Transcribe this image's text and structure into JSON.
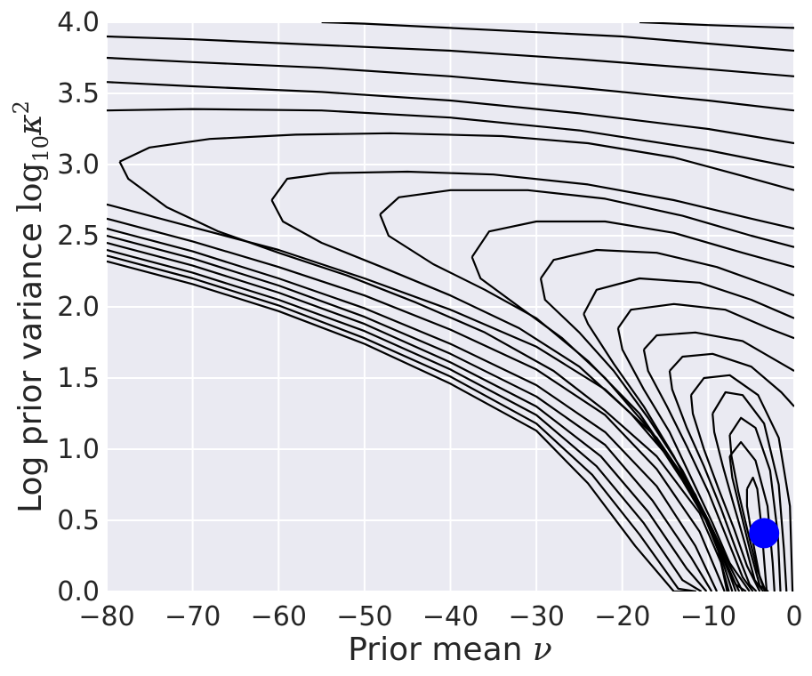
{
  "chart_data": {
    "type": "contour",
    "title": "",
    "xlabel": "Prior mean ",
    "xlabel_symbol": "ν",
    "ylabel": "Log prior variance ",
    "ylabel_log": "log",
    "ylabel_sub": "10",
    "ylabel_var": "κ",
    "ylabel_sup": "2",
    "xlim": [
      -80,
      0
    ],
    "ylim": [
      0.0,
      4.0
    ],
    "x_ticks": [
      -80,
      -70,
      -60,
      -50,
      -40,
      -30,
      -20,
      -10,
      0
    ],
    "x_tick_labels": [
      "−80",
      "−70",
      "−60",
      "−50",
      "−40",
      "−30",
      "−20",
      "−10",
      "0"
    ],
    "y_ticks": [
      0.0,
      0.5,
      1.0,
      1.5,
      2.0,
      2.5,
      3.0,
      3.5,
      4.0
    ],
    "y_tick_labels": [
      "0.0",
      "0.5",
      "1.0",
      "1.5",
      "2.0",
      "2.5",
      "3.0",
      "3.5",
      "4.0"
    ],
    "grid": true,
    "background_color": "#eaeaf2",
    "grid_color": "#ffffff",
    "contour_color": "#000000",
    "marker": {
      "x": -3.5,
      "y": 0.41,
      "color": "#0000ff"
    },
    "contours": [
      [
        [
          -78.5,
          3.02
        ],
        [
          -77.5,
          2.9
        ],
        [
          -73,
          2.7
        ],
        [
          -67,
          2.53
        ],
        [
          -60,
          2.38
        ],
        [
          -52,
          2.22
        ],
        [
          -44,
          2.03
        ],
        [
          -36,
          1.82
        ],
        [
          -28,
          1.55
        ],
        [
          -22,
          1.27
        ],
        [
          -16,
          0.95
        ],
        [
          -11,
          0.55
        ],
        [
          -8.5,
          0.2
        ],
        [
          -7.6,
          0
        ]
      ],
      [
        [
          -78.5,
          3.02
        ],
        [
          -75,
          3.12
        ],
        [
          -68,
          3.18
        ],
        [
          -58,
          3.21
        ],
        [
          -47,
          3.22
        ],
        [
          -34,
          3.2
        ],
        [
          -24,
          3.15
        ],
        [
          -14,
          3.05
        ],
        [
          -6,
          2.92
        ],
        [
          0,
          2.82
        ]
      ],
      [
        [
          -60.8,
          2.75
        ],
        [
          -59.5,
          2.6
        ],
        [
          -55,
          2.45
        ],
        [
          -48,
          2.28
        ],
        [
          -40,
          2.08
        ],
        [
          -32,
          1.85
        ],
        [
          -25,
          1.58
        ],
        [
          -19,
          1.25
        ],
        [
          -14,
          0.9
        ],
        [
          -10,
          0.5
        ],
        [
          -8,
          0.15
        ],
        [
          -7.2,
          0
        ]
      ],
      [
        [
          -60.8,
          2.75
        ],
        [
          -59,
          2.9
        ],
        [
          -54,
          2.94
        ],
        [
          -45,
          2.95
        ],
        [
          -35,
          2.93
        ],
        [
          -24,
          2.86
        ],
        [
          -14,
          2.75
        ],
        [
          -5,
          2.62
        ],
        [
          0,
          2.55
        ]
      ],
      [
        [
          -48.2,
          2.65
        ],
        [
          -47.2,
          2.5
        ],
        [
          -42,
          2.3
        ],
        [
          -36,
          2.12
        ],
        [
          -30,
          1.92
        ],
        [
          -24,
          1.62
        ],
        [
          -18,
          1.25
        ],
        [
          -13.5,
          0.85
        ],
        [
          -10,
          0.48
        ],
        [
          -7.5,
          0.12
        ],
        [
          -6.8,
          0
        ]
      ],
      [
        [
          -48.2,
          2.65
        ],
        [
          -46,
          2.77
        ],
        [
          -40,
          2.82
        ],
        [
          -31,
          2.82
        ],
        [
          -22,
          2.76
        ],
        [
          -13,
          2.64
        ],
        [
          -5,
          2.5
        ],
        [
          0,
          2.42
        ]
      ],
      [
        [
          -37.5,
          2.35
        ],
        [
          -36.5,
          2.2
        ],
        [
          -32,
          2.0
        ],
        [
          -27,
          1.78
        ],
        [
          -22,
          1.5
        ],
        [
          -17,
          1.15
        ],
        [
          -13,
          0.78
        ],
        [
          -9.5,
          0.42
        ],
        [
          -7.2,
          0.1
        ],
        [
          -6.4,
          0
        ]
      ],
      [
        [
          -37.5,
          2.35
        ],
        [
          -35.5,
          2.53
        ],
        [
          -30,
          2.6
        ],
        [
          -22,
          2.6
        ],
        [
          -14,
          2.52
        ],
        [
          -6,
          2.38
        ],
        [
          0,
          2.28
        ]
      ],
      [
        [
          -29.5,
          2.2
        ],
        [
          -29,
          2.05
        ],
        [
          -25,
          1.82
        ],
        [
          -21,
          1.55
        ],
        [
          -17,
          1.22
        ],
        [
          -13,
          0.85
        ],
        [
          -10,
          0.5
        ],
        [
          -7.5,
          0.18
        ],
        [
          -6,
          0
        ]
      ],
      [
        [
          -29.5,
          2.2
        ],
        [
          -28,
          2.33
        ],
        [
          -23,
          2.4
        ],
        [
          -16,
          2.38
        ],
        [
          -9,
          2.28
        ],
        [
          -3,
          2.15
        ],
        [
          0,
          2.08
        ]
      ],
      [
        [
          -24.5,
          1.95
        ],
        [
          -24,
          1.88
        ],
        [
          -21,
          1.6
        ],
        [
          -17.5,
          1.3
        ],
        [
          -14,
          0.95
        ],
        [
          -11,
          0.6
        ],
        [
          -8.5,
          0.28
        ],
        [
          -6.8,
          0.05
        ],
        [
          -5.6,
          0
        ]
      ],
      [
        [
          -24.5,
          1.95
        ],
        [
          -23,
          2.12
        ],
        [
          -18,
          2.2
        ],
        [
          -11,
          2.17
        ],
        [
          -5,
          2.05
        ],
        [
          0,
          1.92
        ]
      ],
      [
        [
          -20.5,
          1.85
        ],
        [
          -20,
          1.7
        ],
        [
          -17.5,
          1.42
        ],
        [
          -14.5,
          1.12
        ],
        [
          -12,
          0.8
        ],
        [
          -9.5,
          0.48
        ],
        [
          -7.5,
          0.2
        ],
        [
          -5.2,
          0
        ]
      ],
      [
        [
          -20.5,
          1.85
        ],
        [
          -19,
          1.98
        ],
        [
          -14,
          2.02
        ],
        [
          -8,
          1.98
        ],
        [
          -3,
          1.85
        ],
        [
          0,
          1.78
        ]
      ],
      [
        [
          -17.5,
          1.7
        ],
        [
          -17,
          1.55
        ],
        [
          -14.8,
          1.3
        ],
        [
          -12.5,
          1.02
        ],
        [
          -10,
          0.7
        ],
        [
          -8,
          0.4
        ],
        [
          -6,
          0.1
        ],
        [
          -4.8,
          0
        ]
      ],
      [
        [
          -17.5,
          1.7
        ],
        [
          -16,
          1.8
        ],
        [
          -11.5,
          1.82
        ],
        [
          -6,
          1.76
        ],
        [
          -2,
          1.62
        ],
        [
          0,
          1.55
        ]
      ],
      [
        [
          -14.5,
          1.55
        ],
        [
          -14.2,
          1.42
        ],
        [
          -12.5,
          1.15
        ],
        [
          -10.5,
          0.88
        ],
        [
          -8.5,
          0.58
        ],
        [
          -6.8,
          0.3
        ],
        [
          -5.2,
          0.05
        ],
        [
          -4.4,
          0
        ]
      ],
      [
        [
          -14.5,
          1.55
        ],
        [
          -13,
          1.65
        ],
        [
          -9.5,
          1.67
        ],
        [
          -5,
          1.58
        ],
        [
          -1.5,
          1.4
        ],
        [
          0,
          1.3
        ]
      ],
      [
        [
          -12,
          1.38
        ],
        [
          -11.8,
          1.25
        ],
        [
          -10.5,
          1.0
        ],
        [
          -8.8,
          0.72
        ],
        [
          -7,
          0.44
        ],
        [
          -5.5,
          0.18
        ],
        [
          -4,
          0
        ]
      ],
      [
        [
          -12,
          1.38
        ],
        [
          -10.5,
          1.5
        ],
        [
          -7.5,
          1.52
        ],
        [
          -4.2,
          1.38
        ],
        [
          -1.8,
          1.08
        ],
        [
          -0.5,
          0.6
        ],
        [
          -0.2,
          0
        ]
      ],
      [
        [
          -9.5,
          1.25
        ],
        [
          -9.3,
          1.12
        ],
        [
          -8.3,
          0.88
        ],
        [
          -7,
          0.6
        ],
        [
          -5.7,
          0.33
        ],
        [
          -4.6,
          0.08
        ],
        [
          -3.6,
          0
        ]
      ],
      [
        [
          -9.5,
          1.25
        ],
        [
          -8,
          1.4
        ],
        [
          -6,
          1.38
        ],
        [
          -3.5,
          1.18
        ],
        [
          -1.8,
          0.75
        ],
        [
          -1.2,
          0.3
        ],
        [
          -0.9,
          0
        ]
      ],
      [
        [
          -7.5,
          1.1
        ],
        [
          -7.3,
          0.95
        ],
        [
          -6.5,
          0.7
        ],
        [
          -5.4,
          0.42
        ],
        [
          -4.3,
          0.15
        ],
        [
          -3.3,
          0
        ]
      ],
      [
        [
          -7.5,
          1.1
        ],
        [
          -6.2,
          1.22
        ],
        [
          -4.5,
          1.15
        ],
        [
          -2.8,
          0.85
        ],
        [
          -1.9,
          0.4
        ],
        [
          -1.6,
          0
        ]
      ],
      [
        [
          -7.5,
          0.95
        ],
        [
          -7.2,
          0.8
        ],
        [
          -6.2,
          0.55
        ],
        [
          -5.1,
          0.28
        ],
        [
          -4,
          0.04
        ],
        [
          -3,
          0
        ]
      ],
      [
        [
          -7.5,
          0.95
        ],
        [
          -6.2,
          1.05
        ],
        [
          -4.5,
          0.92
        ],
        [
          -3.1,
          0.6
        ],
        [
          -2.5,
          0.2
        ],
        [
          -2.3,
          0
        ]
      ],
      [
        [
          -5.5,
          0.72
        ],
        [
          -5.5,
          0.6
        ],
        [
          -4.8,
          0.35
        ],
        [
          -4,
          0.1
        ],
        [
          -3.4,
          0
        ]
      ],
      [
        [
          -5.5,
          0.72
        ],
        [
          -4.8,
          0.8
        ],
        [
          -4.3,
          0.72
        ],
        [
          -3.8,
          0.45
        ],
        [
          -3.4,
          0.15
        ],
        [
          -3.2,
          0
        ]
      ],
      [
        [
          -55,
          4.0
        ],
        [
          -50,
          3.99
        ],
        [
          -40,
          3.96
        ],
        [
          -30,
          3.93
        ],
        [
          -20,
          3.9
        ],
        [
          -10,
          3.85
        ],
        [
          0,
          3.8
        ]
      ],
      [
        [
          -80,
          3.9
        ],
        [
          -70,
          3.88
        ],
        [
          -55,
          3.84
        ],
        [
          -40,
          3.8
        ],
        [
          -25,
          3.74
        ],
        [
          -10,
          3.67
        ],
        [
          0,
          3.62
        ]
      ],
      [
        [
          -80,
          3.75
        ],
        [
          -70,
          3.72
        ],
        [
          -55,
          3.68
        ],
        [
          -40,
          3.62
        ],
        [
          -25,
          3.54
        ],
        [
          -10,
          3.45
        ],
        [
          0,
          3.38
        ]
      ],
      [
        [
          -80,
          3.58
        ],
        [
          -70,
          3.55
        ],
        [
          -55,
          3.51
        ],
        [
          -40,
          3.45
        ],
        [
          -25,
          3.36
        ],
        [
          -10,
          3.25
        ],
        [
          0,
          3.15
        ]
      ],
      [
        [
          -80,
          3.38
        ],
        [
          -70,
          3.39
        ],
        [
          -55,
          3.38
        ],
        [
          -40,
          3.33
        ],
        [
          -25,
          3.24
        ],
        [
          -10,
          3.1
        ],
        [
          0,
          2.98
        ]
      ],
      [
        [
          -18,
          4.0
        ],
        [
          -10,
          3.98
        ],
        [
          0,
          3.96
        ]
      ],
      [
        [
          -80,
          2.72
        ],
        [
          -70,
          2.56
        ],
        [
          -60,
          2.4
        ],
        [
          -50,
          2.2
        ],
        [
          -40,
          1.98
        ],
        [
          -30,
          1.72
        ],
        [
          -22,
          1.42
        ],
        [
          -16,
          1.08
        ],
        [
          -11.5,
          0.68
        ],
        [
          -8.8,
          0.28
        ],
        [
          -7.8,
          0
        ]
      ],
      [
        [
          -80,
          2.62
        ],
        [
          -70,
          2.46
        ],
        [
          -60,
          2.28
        ],
        [
          -50,
          2.08
        ],
        [
          -40,
          1.84
        ],
        [
          -30,
          1.56
        ],
        [
          -22,
          1.24
        ],
        [
          -16,
          0.86
        ],
        [
          -11,
          0.42
        ],
        [
          -8.5,
          0.06
        ],
        [
          -8.1,
          0
        ]
      ],
      [
        [
          -80,
          2.55
        ],
        [
          -70,
          2.39
        ],
        [
          -60,
          2.2
        ],
        [
          -50,
          1.99
        ],
        [
          -40,
          1.74
        ],
        [
          -30,
          1.45
        ],
        [
          -22,
          1.12
        ],
        [
          -16,
          0.74
        ],
        [
          -11.5,
          0.32
        ],
        [
          -9,
          0
        ]
      ],
      [
        [
          -80,
          2.5
        ],
        [
          -70,
          2.34
        ],
        [
          -60,
          2.15
        ],
        [
          -50,
          1.93
        ],
        [
          -40,
          1.67
        ],
        [
          -30,
          1.37
        ],
        [
          -22,
          1.03
        ],
        [
          -16.5,
          0.64
        ],
        [
          -12,
          0.24
        ],
        [
          -9.6,
          0
        ]
      ],
      [
        [
          -80,
          2.45
        ],
        [
          -70,
          2.29
        ],
        [
          -60,
          2.1
        ],
        [
          -50,
          1.88
        ],
        [
          -40,
          1.61
        ],
        [
          -30,
          1.3
        ],
        [
          -22.5,
          0.95
        ],
        [
          -17,
          0.56
        ],
        [
          -12.5,
          0.16
        ],
        [
          -10.2,
          0
        ]
      ],
      [
        [
          -80,
          2.4
        ],
        [
          -70,
          2.24
        ],
        [
          -60,
          2.05
        ],
        [
          -50,
          1.83
        ],
        [
          -40,
          1.56
        ],
        [
          -30,
          1.24
        ],
        [
          -23,
          0.88
        ],
        [
          -17.5,
          0.48
        ],
        [
          -13,
          0.08
        ],
        [
          -10.8,
          0
        ]
      ],
      [
        [
          -80,
          2.36
        ],
        [
          -70,
          2.2
        ],
        [
          -60,
          2.01
        ],
        [
          -50,
          1.78
        ],
        [
          -40,
          1.51
        ],
        [
          -30,
          1.18
        ],
        [
          -23.5,
          0.82
        ],
        [
          -18,
          0.4
        ],
        [
          -13.5,
          0.02
        ],
        [
          -11.4,
          0
        ]
      ],
      [
        [
          -80,
          2.32
        ],
        [
          -70,
          2.16
        ],
        [
          -60,
          1.97
        ],
        [
          -50,
          1.74
        ],
        [
          -40,
          1.46
        ],
        [
          -30,
          1.13
        ],
        [
          -24,
          0.76
        ],
        [
          -18.5,
          0.32
        ],
        [
          -14,
          0
        ],
        [
          -12,
          0
        ]
      ]
    ]
  }
}
